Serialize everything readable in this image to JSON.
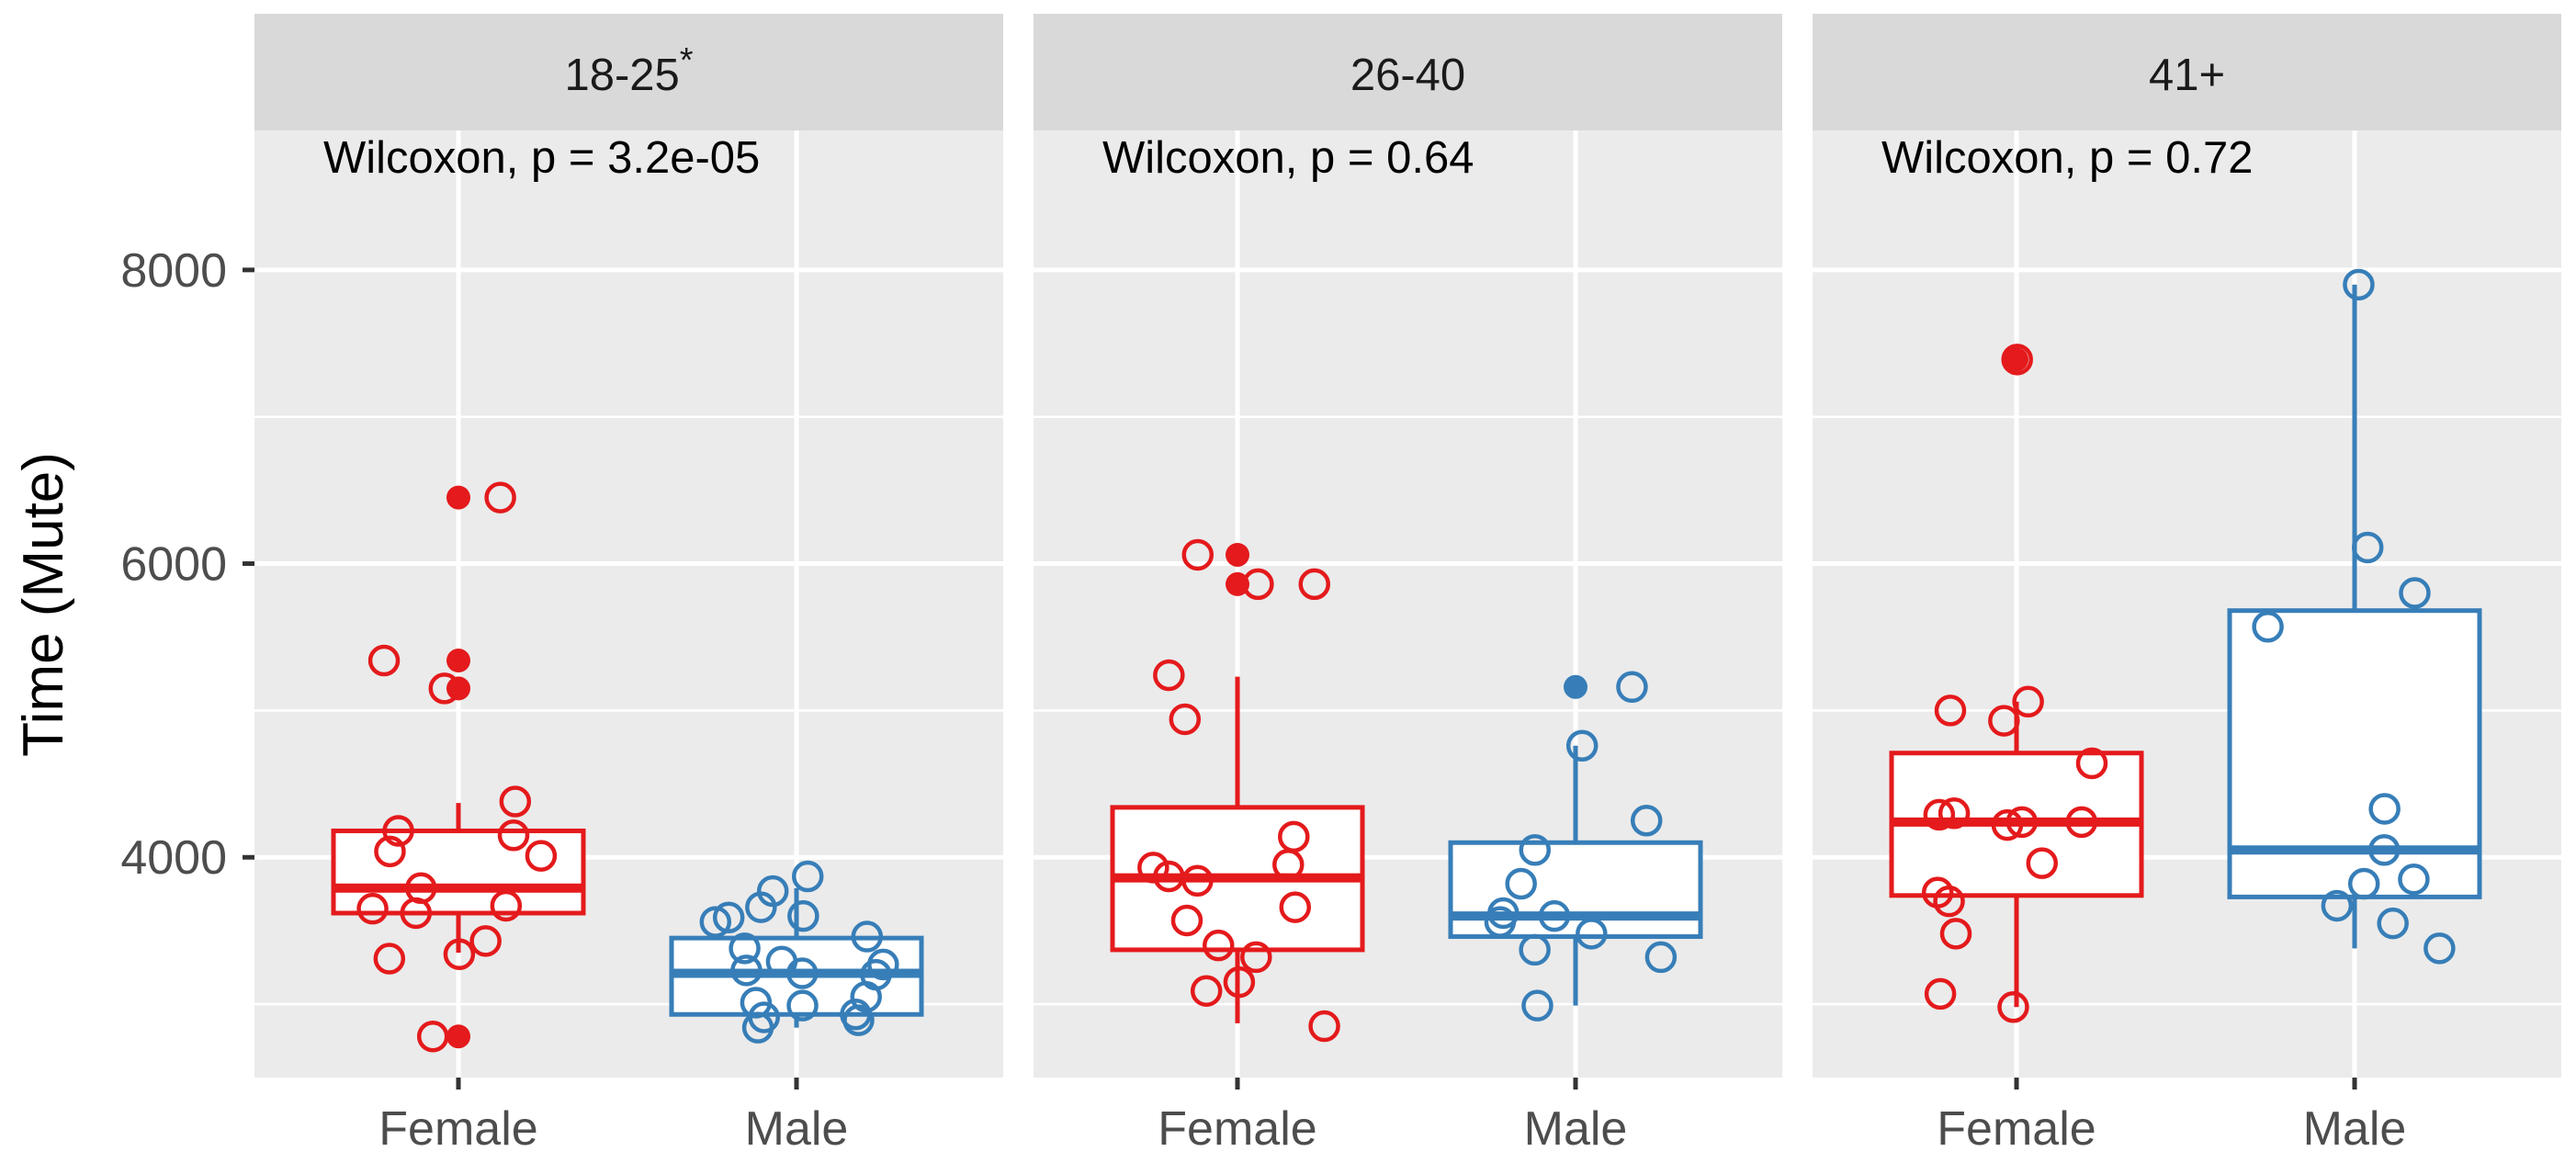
{
  "chart_data": {
    "type": "box",
    "ylabel": "Time (Mute)",
    "xlabel": "",
    "ylim": [
      2500,
      8950
    ],
    "yticks": [
      4000,
      6000,
      8000
    ],
    "minor_yticks": [
      3000,
      5000,
      7000
    ],
    "categories": [
      "Female",
      "Male"
    ],
    "colors": {
      "Female": "#e41a1c",
      "Male": "#377eb8"
    },
    "grid": true,
    "legend": "none",
    "panels": [
      {
        "strip_base": "18-25",
        "strip_sup": "*",
        "annotation": "Wilcoxon, p = 3.2e-05",
        "boxes": [
          {
            "group": "Female",
            "min": 3350,
            "q1": 3620,
            "median": 3790,
            "q3": 4180,
            "max": 4370,
            "outliers": [
              6450,
              5340,
              5150,
              2780
            ]
          },
          {
            "group": "Male",
            "min": 2840,
            "q1": 2930,
            "median": 3210,
            "q3": 3450,
            "max": 3790,
            "outliers": []
          }
        ],
        "points": [
          {
            "group": "Female",
            "values": [
              6450,
              5340,
              5150,
              4380,
              4180,
              4150,
              4040,
              4010,
              3790,
              3670,
              3650,
              3620,
              3430,
              3340,
              3310,
              2780
            ]
          },
          {
            "group": "Male",
            "values": [
              3870,
              3770,
              3660,
              3600,
              3590,
              3560,
              3460,
              3380,
              3290,
              3270,
              3230,
              3210,
              3200,
              3050,
              3010,
              2990,
              2930,
              2910,
              2890,
              2840
            ]
          }
        ]
      },
      {
        "strip_base": "26-40",
        "strip_sup": "",
        "annotation": "Wilcoxon, p = 0.64",
        "boxes": [
          {
            "group": "Female",
            "min": 2870,
            "q1": 3370,
            "median": 3860,
            "q3": 4340,
            "max": 5230,
            "outliers": [
              6060,
              5860
            ]
          },
          {
            "group": "Male",
            "min": 2990,
            "q1": 3460,
            "median": 3600,
            "q3": 4100,
            "max": 4760,
            "outliers": [
              5160
            ]
          }
        ],
        "points": [
          {
            "group": "Female",
            "values": [
              6060,
              5860,
              5860,
              5240,
              4940,
              4140,
              3950,
              3930,
              3870,
              3840,
              3660,
              3570,
              3400,
              3320,
              3150,
              3090,
              2850
            ]
          },
          {
            "group": "Male",
            "values": [
              5160,
              4760,
              4250,
              4050,
              3820,
              3620,
              3600,
              3560,
              3480,
              3370,
              3320,
              2990
            ]
          }
        ]
      },
      {
        "strip_base": "41+",
        "strip_sup": "",
        "annotation": "Wilcoxon, p = 0.72",
        "boxes": [
          {
            "group": "Female",
            "min": 2980,
            "q1": 3740,
            "median": 4240,
            "q3": 4710,
            "max": 5060,
            "outliers": [
              7390
            ]
          },
          {
            "group": "Male",
            "min": 3380,
            "q1": 3730,
            "median": 4050,
            "q3": 5680,
            "max": 7900,
            "outliers": []
          }
        ],
        "points": [
          {
            "group": "Female",
            "values": [
              7390,
              5060,
              5000,
              4930,
              4640,
              4300,
              4290,
              4240,
              4240,
              4220,
              3960,
              3760,
              3700,
              3480,
              3070,
              2980
            ]
          },
          {
            "group": "Male",
            "values": [
              7900,
              6110,
              5800,
              5570,
              4330,
              4050,
              3850,
              3820,
              3670,
              3550,
              3380
            ]
          }
        ]
      }
    ]
  }
}
